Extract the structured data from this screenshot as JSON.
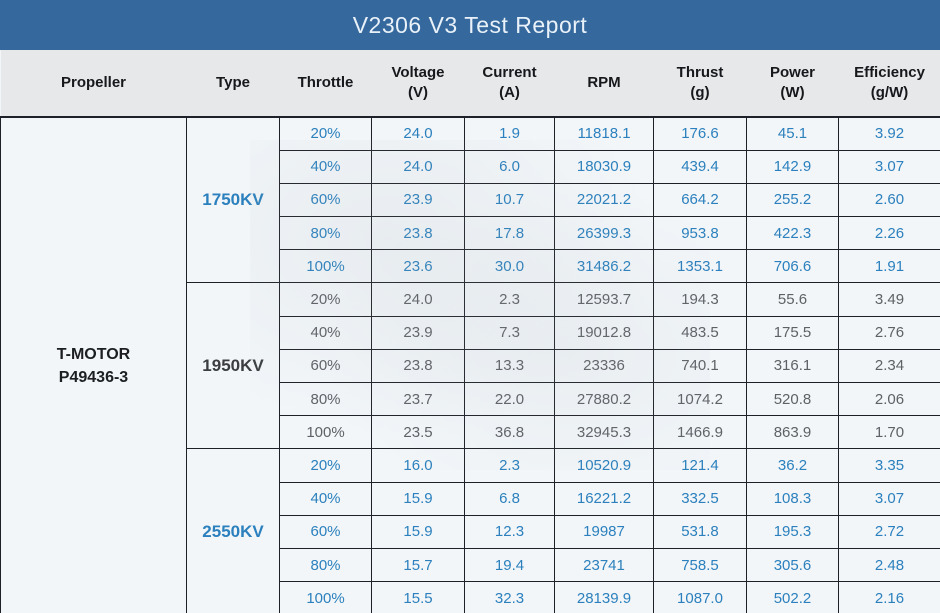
{
  "title": "V2306 V3 Test Report",
  "colors": {
    "title_bar_bg": "#35689C",
    "title_text": "#E9F1F9",
    "header_bg": "#E6E8EA",
    "header_text": "#16181B",
    "table_bg": "#F2F6F9",
    "border": "#1E2127",
    "blue_section_text": "#2B80BD",
    "gray_section_text": "#5E6165",
    "propeller_text": "#1C1E21"
  },
  "chart_data": {
    "type": "table",
    "title": "V2306 V3 Test Report",
    "columns": [
      {
        "label": "Propeller",
        "unit": ""
      },
      {
        "label": "Type",
        "unit": ""
      },
      {
        "label": "Throttle",
        "unit": ""
      },
      {
        "label": "Voltage",
        "unit": "(V)"
      },
      {
        "label": "Current",
        "unit": "(A)"
      },
      {
        "label": "RPM",
        "unit": ""
      },
      {
        "label": "Thrust",
        "unit": "(g)"
      },
      {
        "label": "Power",
        "unit": "(W)"
      },
      {
        "label": "Efficiency",
        "unit": "(g/W)"
      }
    ],
    "propeller_line1": "T-MOTOR",
    "propeller_line2": "P49436-3",
    "sections": [
      {
        "type": "1750KV",
        "scheme": "blue",
        "rows": [
          {
            "throttle": "20%",
            "voltage": "24.0",
            "current": "1.9",
            "rpm": "11818.1",
            "thrust": "176.6",
            "power": "45.1",
            "efficiency": "3.92"
          },
          {
            "throttle": "40%",
            "voltage": "24.0",
            "current": "6.0",
            "rpm": "18030.9",
            "thrust": "439.4",
            "power": "142.9",
            "efficiency": "3.07"
          },
          {
            "throttle": "60%",
            "voltage": "23.9",
            "current": "10.7",
            "rpm": "22021.2",
            "thrust": "664.2",
            "power": "255.2",
            "efficiency": "2.60"
          },
          {
            "throttle": "80%",
            "voltage": "23.8",
            "current": "17.8",
            "rpm": "26399.3",
            "thrust": "953.8",
            "power": "422.3",
            "efficiency": "2.26"
          },
          {
            "throttle": "100%",
            "voltage": "23.6",
            "current": "30.0",
            "rpm": "31486.2",
            "thrust": "1353.1",
            "power": "706.6",
            "efficiency": "1.91"
          }
        ]
      },
      {
        "type": "1950KV",
        "scheme": "gray",
        "rows": [
          {
            "throttle": "20%",
            "voltage": "24.0",
            "current": "2.3",
            "rpm": "12593.7",
            "thrust": "194.3",
            "power": "55.6",
            "efficiency": "3.49"
          },
          {
            "throttle": "40%",
            "voltage": "23.9",
            "current": "7.3",
            "rpm": "19012.8",
            "thrust": "483.5",
            "power": "175.5",
            "efficiency": "2.76"
          },
          {
            "throttle": "60%",
            "voltage": "23.8",
            "current": "13.3",
            "rpm": "23336",
            "thrust": "740.1",
            "power": "316.1",
            "efficiency": "2.34"
          },
          {
            "throttle": "80%",
            "voltage": "23.7",
            "current": "22.0",
            "rpm": "27880.2",
            "thrust": "1074.2",
            "power": "520.8",
            "efficiency": "2.06"
          },
          {
            "throttle": "100%",
            "voltage": "23.5",
            "current": "36.8",
            "rpm": "32945.3",
            "thrust": "1466.9",
            "power": "863.9",
            "efficiency": "1.70"
          }
        ]
      },
      {
        "type": "2550KV",
        "scheme": "blue",
        "rows": [
          {
            "throttle": "20%",
            "voltage": "16.0",
            "current": "2.3",
            "rpm": "10520.9",
            "thrust": "121.4",
            "power": "36.2",
            "efficiency": "3.35"
          },
          {
            "throttle": "40%",
            "voltage": "15.9",
            "current": "6.8",
            "rpm": "16221.2",
            "thrust": "332.5",
            "power": "108.3",
            "efficiency": "3.07"
          },
          {
            "throttle": "60%",
            "voltage": "15.9",
            "current": "12.3",
            "rpm": "19987",
            "thrust": "531.8",
            "power": "195.3",
            "efficiency": "2.72"
          },
          {
            "throttle": "80%",
            "voltage": "15.7",
            "current": "19.4",
            "rpm": "23741",
            "thrust": "758.5",
            "power": "305.6",
            "efficiency": "2.48"
          },
          {
            "throttle": "100%",
            "voltage": "15.5",
            "current": "32.3",
            "rpm": "28139.9",
            "thrust": "1087.0",
            "power": "502.2",
            "efficiency": "2.16"
          }
        ]
      }
    ]
  }
}
